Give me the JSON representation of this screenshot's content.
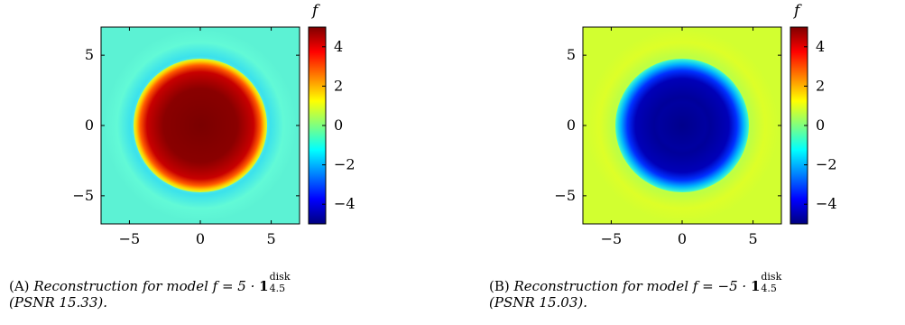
{
  "chart_data": [
    {
      "type": "heatmap",
      "x": [
        -5,
        0,
        5
      ],
      "y": [
        -5,
        0,
        5
      ],
      "xlim": [
        -7,
        7
      ],
      "ylim": [
        -7,
        7
      ],
      "colorbar": {
        "title": "f",
        "range": [
          -5,
          5
        ],
        "ticks": [
          4,
          2,
          0,
          -2,
          -4
        ],
        "tick_labels": [
          "4",
          "2",
          "0",
          "−2",
          "−4"
        ],
        "colormap": "jet"
      },
      "disk_radius": 4.5,
      "disk_value": 5,
      "background_value": -0.8,
      "caption": {
        "tag": "(A)",
        "text": "Reconstruction for model f = 5 ·",
        "indicator": "1",
        "indicator_sup": "disk",
        "indicator_sub": "4.5",
        "psnr_label": "(PSNR",
        "psnr_value": "15.33).",
        "psnr_close": ""
      }
    },
    {
      "type": "heatmap",
      "x": [
        -5,
        0,
        5
      ],
      "y": [
        -5,
        0,
        5
      ],
      "xlim": [
        -7,
        7
      ],
      "ylim": [
        -7,
        7
      ],
      "colorbar": {
        "title": "f",
        "range": [
          -5,
          5
        ],
        "ticks": [
          4,
          2,
          0,
          -2,
          -4
        ],
        "tick_labels": [
          "4",
          "2",
          "0",
          "−2",
          "−4"
        ],
        "colormap": "jet"
      },
      "disk_radius": 4.5,
      "disk_value": -5,
      "background_value": 0.6,
      "caption": {
        "tag": "(B)",
        "text": "Reconstruction for model f = −5 ·",
        "indicator": "1",
        "indicator_sup": "disk",
        "indicator_sub": "4.5",
        "psnr_label": "(PSNR",
        "psnr_value": "15.03).",
        "psnr_close": ""
      }
    }
  ]
}
